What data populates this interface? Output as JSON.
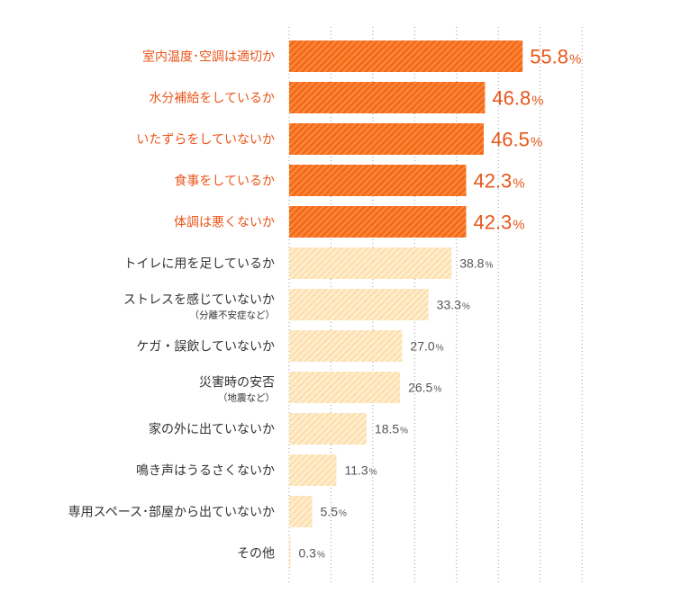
{
  "chart_data": {
    "type": "bar",
    "orientation": "horizontal",
    "xlim": [
      0,
      70
    ],
    "grid": "vertical dotted",
    "categories": [
      {
        "label": "室内温度･空調は適切か",
        "sub": "",
        "value": 55.8,
        "display": "55.8",
        "highlight": true
      },
      {
        "label": "水分補給をしているか",
        "sub": "",
        "value": 46.8,
        "display": "46.8",
        "highlight": true
      },
      {
        "label": "いたずらをしていないか",
        "sub": "",
        "value": 46.5,
        "display": "46.5",
        "highlight": true
      },
      {
        "label": "食事をしているか",
        "sub": "",
        "value": 42.3,
        "display": "42.3",
        "highlight": true
      },
      {
        "label": "体調は悪くないか",
        "sub": "",
        "value": 42.3,
        "display": "42.3",
        "highlight": true
      },
      {
        "label": "トイレに用を足しているか",
        "sub": "",
        "value": 38.8,
        "display": "38.8",
        "highlight": false
      },
      {
        "label": "ストレスを感じていないか",
        "sub": "（分離不安症など）",
        "value": 33.3,
        "display": "33.3",
        "highlight": false
      },
      {
        "label": "ケガ・誤飲していないか",
        "sub": "",
        "value": 27.0,
        "display": "27.0",
        "highlight": false
      },
      {
        "label": "災害時の安否",
        "sub": "（地震など）",
        "value": 26.5,
        "display": "26.5",
        "highlight": false
      },
      {
        "label": "家の外に出ていないか",
        "sub": "",
        "value": 18.5,
        "display": "18.5",
        "highlight": false
      },
      {
        "label": "鳴き声はうるさくないか",
        "sub": "",
        "value": 11.3,
        "display": "11.3",
        "highlight": false
      },
      {
        "label": "専用スペース･部屋から出ていないか",
        "sub": "",
        "value": 5.5,
        "display": "5.5",
        "highlight": false
      },
      {
        "label": "その他",
        "sub": "",
        "value": 0.3,
        "display": "0.3",
        "highlight": false
      }
    ],
    "unit": "%"
  },
  "colors": {
    "highlight_bar": "#f26a1b",
    "highlight_stripe": "#ff8a3c",
    "highlight_text": "#e8561a",
    "normal_bar": "#fde0b0",
    "normal_stripe": "#fff0d6",
    "normal_label": "#333333",
    "normal_value": "#555555",
    "grid": "#999999"
  }
}
